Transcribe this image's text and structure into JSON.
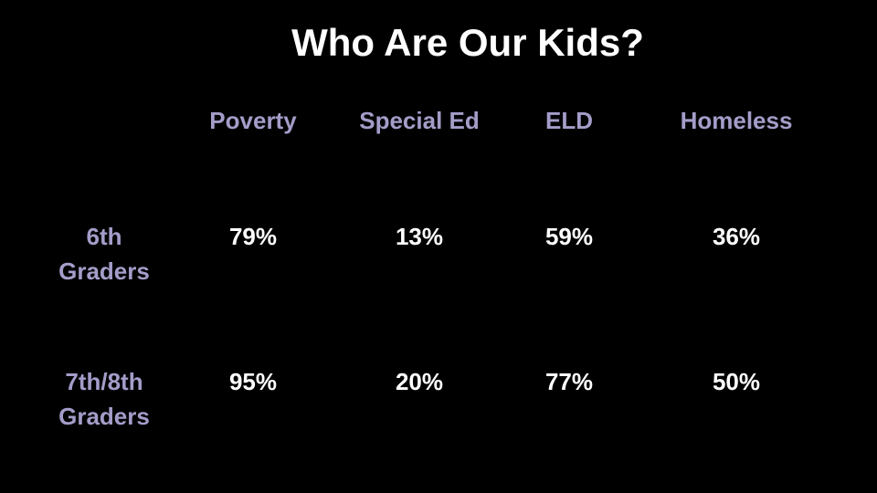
{
  "title": "Who Are Our Kids?",
  "table": {
    "columns": [
      "Poverty",
      "Special Ed",
      "ELD",
      "Homeless"
    ],
    "rows": [
      {
        "label": "6th Graders",
        "cells": [
          "79%",
          "13%",
          "59%",
          "36%"
        ]
      },
      {
        "label": "7th/8th Graders",
        "cells": [
          "95%",
          "20%",
          "77%",
          "50%"
        ]
      }
    ]
  }
}
